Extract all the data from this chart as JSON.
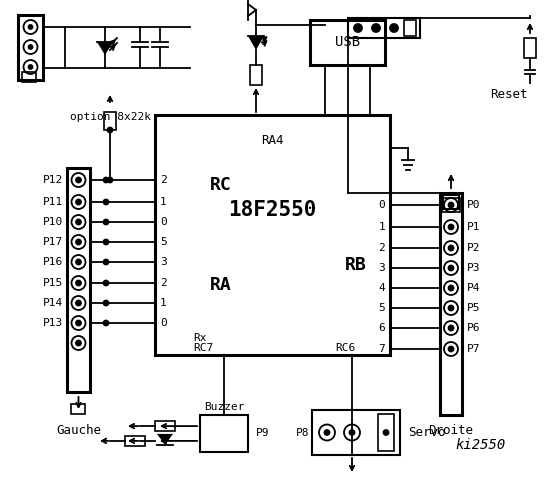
{
  "bg_color": "#ffffff",
  "chip_label": "18F2550",
  "chip_sublabel": "RA4",
  "rc_label": "RC",
  "ra_label": "RA",
  "rb_label": "RB",
  "left_pins": [
    "P12",
    "P11",
    "P10",
    "P17",
    "P16",
    "P15",
    "P14",
    "P13"
  ],
  "right_pins": [
    "P0",
    "P1",
    "P2",
    "P3",
    "P4",
    "P5",
    "P6",
    "P7"
  ],
  "rc_nums": [
    "2",
    "1",
    "0"
  ],
  "ra_nums": [
    "5",
    "3",
    "2",
    "1",
    "0"
  ],
  "rb_nums": [
    "0",
    "1",
    "2",
    "3",
    "4",
    "5",
    "6",
    "7"
  ],
  "bottom_labels_left": [
    "Rx",
    "RC7"
  ],
  "bottom_label_right": "RC6",
  "footer": "ki2550",
  "label_gauche": "Gauche",
  "label_droite": "Droite",
  "label_buzzer": "Buzzer",
  "label_p9": "P9",
  "label_p8": "P8",
  "label_servo": "Servo",
  "label_reset": "Reset",
  "label_usb": "USB",
  "label_option": "option 8x22k"
}
